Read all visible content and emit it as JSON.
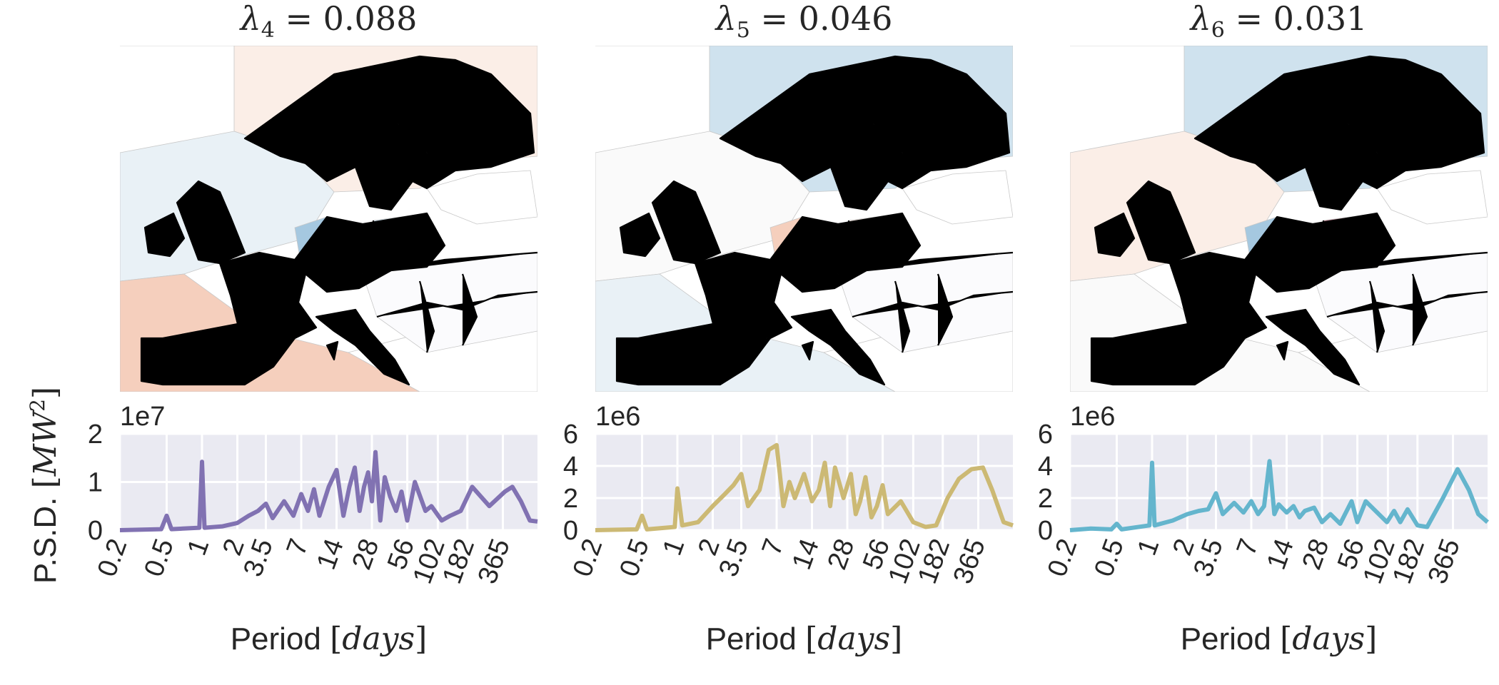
{
  "figure": {
    "ylabel_prefix": "P.S.D.",
    "ylabel_unit": "MW",
    "ylabel_unit_power": "2",
    "xlabel_prefix": "Period",
    "xlabel_unit": "days"
  },
  "colors": {
    "red_strong": "#a86a78",
    "red_mid": "#e6ab9c",
    "red_light": "#f5cfbd",
    "red_faint": "#fbeee7",
    "blue_strong": "#8fb4d7",
    "blue_mid": "#a5c8e0",
    "blue_light": "#cfe2ee",
    "blue_faint": "#e9f1f6",
    "neutral": "#fafafa",
    "psd_background": "#eaeaf2",
    "grid": "#ffffff"
  },
  "panels": [
    {
      "lambda_sub": "4",
      "lambda_value": "0.088",
      "map_colors": {
        "NO": "red_faint",
        "SE": "neutral",
        "FI": "red_mid",
        "GB": "blue_light",
        "IE": "blue_light",
        "FR": "red_strong",
        "ES": "red_light",
        "PT": "red_light",
        "DE": "blue_mid",
        "PL": "blue_light",
        "IT": "neutral",
        "sea_north": "red_faint",
        "sea_west": "blue_faint",
        "sea_south": "red_light"
      }
    },
    {
      "lambda_sub": "5",
      "lambda_value": "0.046",
      "map_colors": {
        "NO": "blue_light",
        "SE": "blue_strong",
        "FI": "red_strong",
        "GB": "neutral",
        "IE": "neutral",
        "FR": "blue_faint",
        "ES": "blue_faint",
        "PT": "blue_faint",
        "DE": "red_light",
        "PL": "red_faint",
        "IT": "neutral",
        "sea_north": "blue_light",
        "sea_west": "neutral",
        "sea_south": "blue_faint"
      }
    },
    {
      "lambda_sub": "6",
      "lambda_value": "0.031",
      "map_colors": {
        "NO": "blue_faint",
        "SE": "neutral",
        "FI": "neutral",
        "GB": "red_light",
        "IE": "red_faint",
        "FR": "neutral",
        "ES": "red_faint",
        "PT": "red_faint",
        "DE": "blue_mid",
        "PL": "red_strong",
        "IT": "neutral",
        "sea_north": "blue_light",
        "sea_west": "red_faint",
        "sea_south": "neutral"
      }
    }
  ],
  "chart_data": [
    {
      "type": "line",
      "color": "#8172b2",
      "x_scale": "log",
      "x_tick_labels": [
        "0.2",
        "0.5",
        "1",
        "2",
        "3.5",
        "7",
        "14",
        "28",
        "56",
        "102",
        "182",
        "365"
      ],
      "x_ticks": [
        0.2,
        0.5,
        1,
        2,
        3.5,
        7,
        14,
        28,
        56,
        102,
        182,
        365
      ],
      "xlim": [
        0.2,
        720
      ],
      "exponent_label": "1e7",
      "y_tick_labels": [
        "0",
        "1",
        "2"
      ],
      "ylim": [
        0,
        2
      ],
      "series": [
        {
          "values": [
            [
              0.2,
              0
            ],
            [
              0.45,
              0.02
            ],
            [
              0.5,
              0.3
            ],
            [
              0.55,
              0.02
            ],
            [
              0.95,
              0.05
            ],
            [
              1,
              1.42
            ],
            [
              1.05,
              0.05
            ],
            [
              1.5,
              0.08
            ],
            [
              2,
              0.15
            ],
            [
              2.5,
              0.3
            ],
            [
              3,
              0.4
            ],
            [
              3.5,
              0.55
            ],
            [
              4,
              0.25
            ],
            [
              5,
              0.6
            ],
            [
              6,
              0.3
            ],
            [
              7,
              0.75
            ],
            [
              8,
              0.4
            ],
            [
              9,
              0.85
            ],
            [
              10,
              0.3
            ],
            [
              12,
              0.9
            ],
            [
              14,
              1.25
            ],
            [
              16,
              0.3
            ],
            [
              18,
              0.9
            ],
            [
              20,
              1.3
            ],
            [
              22,
              0.4
            ],
            [
              24,
              0.9
            ],
            [
              26,
              1.2
            ],
            [
              28,
              0.6
            ],
            [
              30,
              1.62
            ],
            [
              33,
              0.2
            ],
            [
              36,
              1.1
            ],
            [
              40,
              0.7
            ],
            [
              45,
              0.4
            ],
            [
              50,
              0.8
            ],
            [
              56,
              0.2
            ],
            [
              65,
              1.0
            ],
            [
              80,
              0.4
            ],
            [
              90,
              0.5
            ],
            [
              110,
              0.2
            ],
            [
              130,
              0.3
            ],
            [
              160,
              0.4
            ],
            [
              200,
              0.9
            ],
            [
              280,
              0.5
            ],
            [
              380,
              0.8
            ],
            [
              440,
              0.9
            ],
            [
              520,
              0.6
            ],
            [
              620,
              0.2
            ],
            [
              720,
              0.18
            ]
          ]
        }
      ]
    },
    {
      "type": "line",
      "color": "#ccb974",
      "x_scale": "log",
      "x_tick_labels": [
        "0.2",
        "0.5",
        "1",
        "2",
        "3.5",
        "7",
        "14",
        "28",
        "56",
        "102",
        "182",
        "365"
      ],
      "x_ticks": [
        0.2,
        0.5,
        1,
        2,
        3.5,
        7,
        14,
        28,
        56,
        102,
        182,
        365
      ],
      "xlim": [
        0.2,
        720
      ],
      "exponent_label": "1e6",
      "y_tick_labels": [
        "0",
        "2",
        "4",
        "6"
      ],
      "ylim": [
        0,
        6
      ],
      "series": [
        {
          "values": [
            [
              0.2,
              0
            ],
            [
              0.45,
              0.05
            ],
            [
              0.5,
              0.9
            ],
            [
              0.55,
              0.05
            ],
            [
              0.95,
              0.2
            ],
            [
              1,
              2.6
            ],
            [
              1.1,
              0.3
            ],
            [
              1.5,
              0.5
            ],
            [
              2,
              1.5
            ],
            [
              2.5,
              2.2
            ],
            [
              3,
              2.8
            ],
            [
              3.5,
              3.5
            ],
            [
              4,
              1.5
            ],
            [
              5,
              2.5
            ],
            [
              6,
              5.0
            ],
            [
              7,
              5.3
            ],
            [
              8,
              1.5
            ],
            [
              9,
              3.0
            ],
            [
              10,
              2.0
            ],
            [
              12,
              3.5
            ],
            [
              14,
              1.8
            ],
            [
              16,
              2.5
            ],
            [
              18,
              4.2
            ],
            [
              20,
              1.5
            ],
            [
              22,
              3.9
            ],
            [
              26,
              2.0
            ],
            [
              30,
              3.5
            ],
            [
              33,
              1.0
            ],
            [
              36,
              1.8
            ],
            [
              40,
              3.3
            ],
            [
              45,
              0.8
            ],
            [
              50,
              1.5
            ],
            [
              56,
              2.8
            ],
            [
              62,
              1.0
            ],
            [
              80,
              1.8
            ],
            [
              102,
              0.5
            ],
            [
              130,
              0.2
            ],
            [
              160,
              0.3
            ],
            [
              200,
              2.0
            ],
            [
              250,
              3.2
            ],
            [
              320,
              3.8
            ],
            [
              400,
              3.9
            ],
            [
              480,
              2.5
            ],
            [
              600,
              0.5
            ],
            [
              720,
              0.3
            ]
          ]
        }
      ]
    },
    {
      "type": "line",
      "color": "#64b5cd",
      "x_scale": "log",
      "x_tick_labels": [
        "0.2",
        "0.5",
        "1",
        "2",
        "3.5",
        "7",
        "14",
        "28",
        "56",
        "102",
        "182",
        "365"
      ],
      "x_ticks": [
        0.2,
        0.5,
        1,
        2,
        3.5,
        7,
        14,
        28,
        56,
        102,
        182,
        365
      ],
      "xlim": [
        0.2,
        720
      ],
      "exponent_label": "1e6",
      "y_tick_labels": [
        "0",
        "2",
        "4",
        "6"
      ],
      "ylim": [
        0,
        6
      ],
      "series": [
        {
          "values": [
            [
              0.2,
              0
            ],
            [
              0.3,
              0.1
            ],
            [
              0.45,
              0.05
            ],
            [
              0.5,
              0.4
            ],
            [
              0.55,
              0.05
            ],
            [
              0.95,
              0.3
            ],
            [
              1,
              4.2
            ],
            [
              1.05,
              0.3
            ],
            [
              1.5,
              0.6
            ],
            [
              2,
              1.0
            ],
            [
              2.5,
              1.2
            ],
            [
              3,
              1.3
            ],
            [
              3.5,
              2.3
            ],
            [
              4,
              1.0
            ],
            [
              5,
              1.7
            ],
            [
              6,
              1.1
            ],
            [
              7,
              1.8
            ],
            [
              8,
              1.0
            ],
            [
              9,
              1.5
            ],
            [
              10,
              4.3
            ],
            [
              11,
              1.0
            ],
            [
              12,
              1.6
            ],
            [
              14,
              1.1
            ],
            [
              16,
              1.5
            ],
            [
              18,
              0.8
            ],
            [
              20,
              1.2
            ],
            [
              24,
              1.4
            ],
            [
              28,
              0.5
            ],
            [
              33,
              1.0
            ],
            [
              40,
              0.4
            ],
            [
              50,
              1.8
            ],
            [
              56,
              0.5
            ],
            [
              66,
              1.8
            ],
            [
              80,
              1.2
            ],
            [
              100,
              0.5
            ],
            [
              115,
              1.2
            ],
            [
              130,
              0.5
            ],
            [
              150,
              1.3
            ],
            [
              182,
              0.3
            ],
            [
              220,
              0.2
            ],
            [
              300,
              2.0
            ],
            [
              400,
              3.8
            ],
            [
              500,
              2.5
            ],
            [
              600,
              1.0
            ],
            [
              720,
              0.5
            ]
          ]
        }
      ]
    }
  ]
}
